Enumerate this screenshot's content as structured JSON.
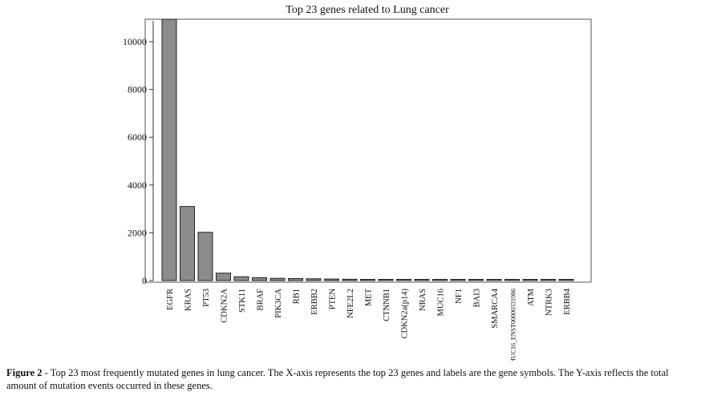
{
  "chart_data": {
    "type": "bar",
    "title": "Top 23 genes related to Lung cancer",
    "xlabel": "",
    "ylabel": "",
    "ylim": [
      0,
      11000
    ],
    "yticks": [
      0,
      2000,
      4000,
      6000,
      8000,
      10000
    ],
    "grid": false,
    "categories": [
      "EGFR",
      "KRAS",
      "PT53",
      "CDKN2A",
      "STK11",
      "BRAF",
      "PIK3CA",
      "RB1",
      "ERBB2",
      "PTEN",
      "NFE2L2",
      "MET",
      "CTNNB1",
      "CDKN2a(p14)",
      "NRAS",
      "MUC16",
      "NF1",
      "BAI3",
      "SMARCA4",
      "MUC16_ENST00000331986",
      "ATM",
      "NTRK3",
      "ERBB4"
    ],
    "values": [
      11000,
      3100,
      2020,
      310,
      160,
      120,
      95,
      85,
      75,
      65,
      55,
      50,
      40,
      38,
      36,
      35,
      34,
      33,
      32,
      31,
      30,
      29,
      28
    ],
    "colors": {
      "bar": "#8c8c8c",
      "bar_stroke": "#222222",
      "axis": "#333333"
    }
  },
  "caption": {
    "label": "Figure 2",
    "text": " - Top 23 most frequently mutated genes in lung cancer. The X-axis represents the top 23 genes and labels are the gene symbols. The Y-axis reflects the total amount of mutation events occurred in these genes."
  }
}
